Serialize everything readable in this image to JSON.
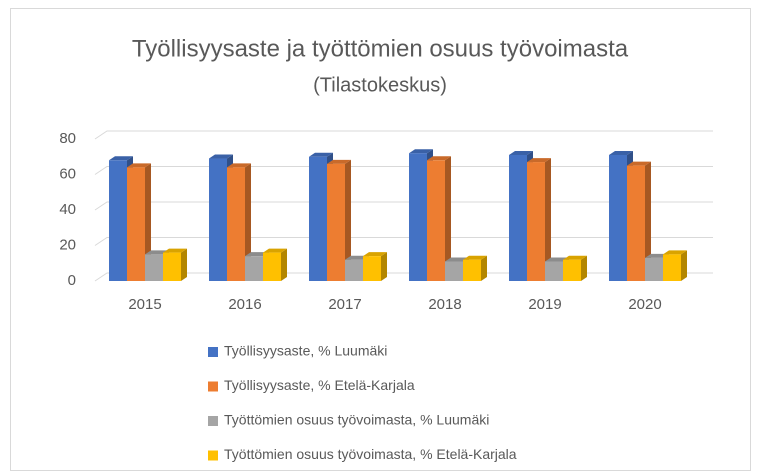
{
  "chart_data": {
    "type": "bar3d",
    "title": "Työllisyysaste ja työttömien osuus työvoimasta",
    "subtitle": "(Tilastokeskus)",
    "categories": [
      "2015",
      "2016",
      "2017",
      "2018",
      "2019",
      "2020"
    ],
    "series": [
      {
        "name": "Työllisyysaste, % Luumäki",
        "color": "#4472c4",
        "values": [
          68,
          69,
          70,
          72,
          71,
          71
        ]
      },
      {
        "name": "Työllisyysaste, % Etelä-Karjala",
        "color": "#ed7d31",
        "values": [
          64,
          64,
          66,
          68,
          67,
          65
        ]
      },
      {
        "name": "Työttömien osuus työvoimasta, % Luumäki",
        "color": "#a5a5a5",
        "values": [
          15,
          14,
          12,
          11,
          11,
          13
        ]
      },
      {
        "name": "Työttömien osuus työvoimasta, % Etelä-Karjala",
        "color": "#ffc000",
        "values": [
          16,
          16,
          14,
          12,
          12,
          15
        ]
      }
    ],
    "ylim": [
      0,
      80
    ],
    "yticks": [
      0,
      20,
      40,
      60,
      80
    ],
    "grid": true,
    "legend": "bottom"
  }
}
